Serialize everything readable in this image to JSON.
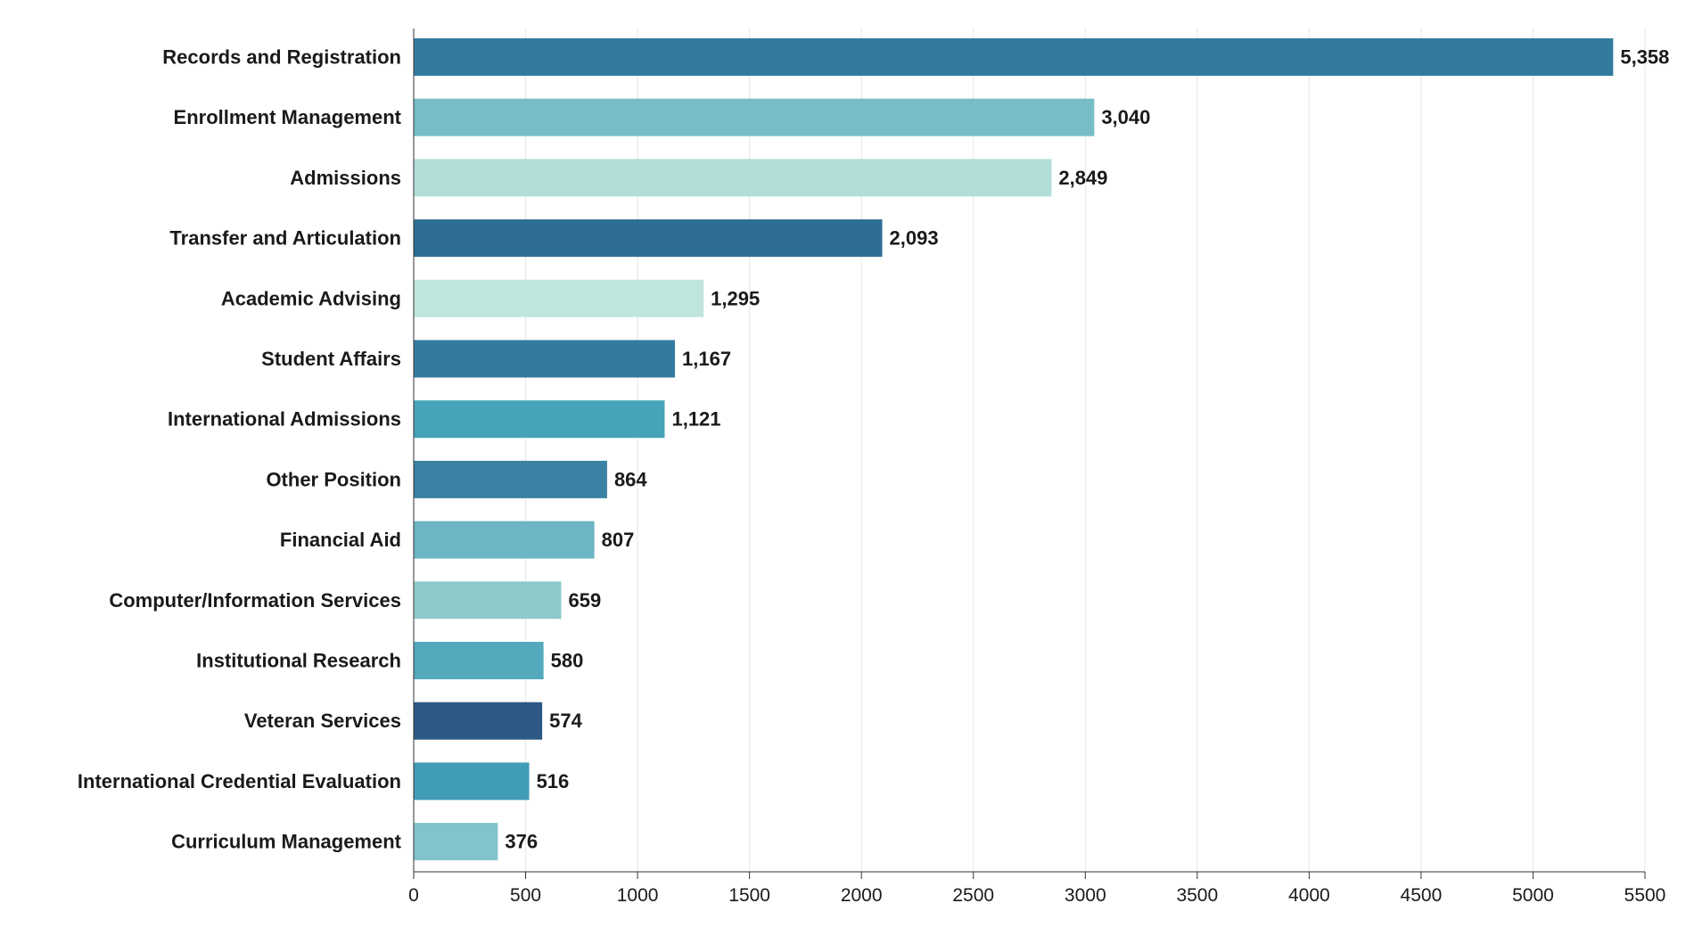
{
  "chart_data": {
    "type": "bar",
    "orientation": "horizontal",
    "title": "",
    "xlabel": "",
    "ylabel": "",
    "xlim": [
      0,
      5500
    ],
    "grid": true,
    "x_ticks": [
      "0",
      "500",
      "1000",
      "1500",
      "2000",
      "2500",
      "3000",
      "3500",
      "4000",
      "4500",
      "5000",
      "5500"
    ],
    "x_tick_values": [
      0,
      500,
      1000,
      1500,
      2000,
      2500,
      3000,
      3500,
      4000,
      4500,
      5000,
      5500
    ],
    "categories": [
      "Records and Registration",
      "Enrollment Management",
      "Admissions",
      "Transfer and Articulation",
      "Academic Advising",
      "Student Affairs",
      "International Admissions",
      "Other Position",
      "Financial Aid",
      "Computer/Information Services",
      "Institutional Research",
      "Veteran Services",
      "International Credential Evaluation",
      "Curriculum Management"
    ],
    "values": [
      5358,
      3040,
      2849,
      2093,
      1295,
      1167,
      1121,
      864,
      807,
      659,
      580,
      574,
      516,
      376
    ],
    "value_labels": [
      "5,358",
      "3,040",
      "2,849",
      "2,093",
      "1,295",
      "1,167",
      "1,121",
      "864",
      "807",
      "659",
      "580",
      "574",
      "516",
      "376"
    ],
    "colors": [
      "#337a9e",
      "#77bdc8",
      "#b1ded8",
      "#2e6e93",
      "#bfe6dc",
      "#337a9e",
      "#47a3b8",
      "#3a82a3",
      "#6cb5c4",
      "#8fcacb",
      "#54a9bd",
      "#2d5985",
      "#419db5",
      "#83c3ca"
    ]
  }
}
